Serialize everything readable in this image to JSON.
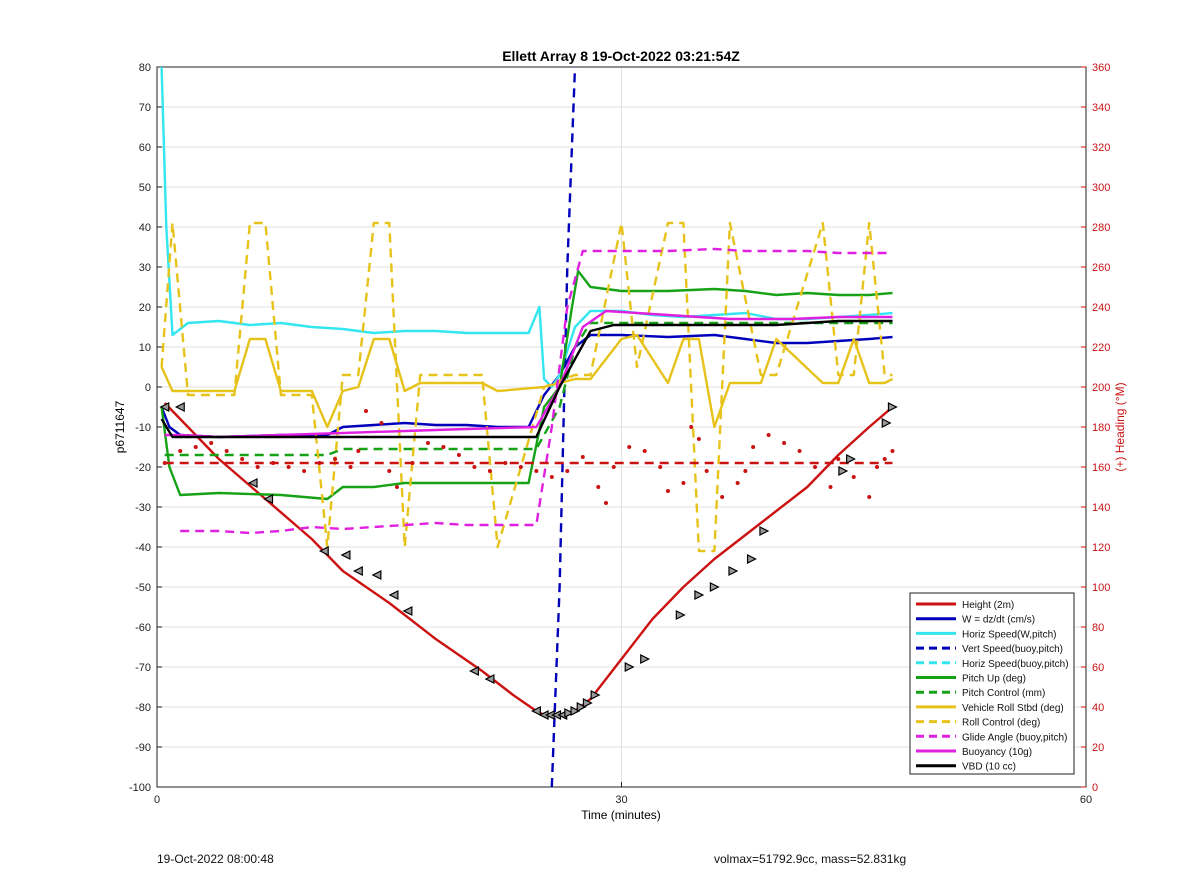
{
  "footer": {
    "left": "19-Oct-2022 08:00:48",
    "right": "volmax=51792.9cc, mass=52.831kg"
  },
  "chart_data": {
    "type": "line",
    "title": "Ellett Array 8 19-Oct-2022 03:21:54Z",
    "xlabel": "Time (minutes)",
    "ylabel": "p6711647",
    "ylabel_right": "(+) Heading (°M)",
    "xlim": [
      0,
      60
    ],
    "ylim": [
      -100,
      80
    ],
    "ylim_right": [
      0,
      360
    ],
    "x_ticks": [
      0,
      30,
      60
    ],
    "y_ticks": [
      -100,
      -90,
      -80,
      -70,
      -60,
      -50,
      -40,
      -30,
      -20,
      -10,
      0,
      10,
      20,
      30,
      40,
      50,
      60,
      70,
      80
    ],
    "y_ticks_right": [
      0,
      20,
      40,
      60,
      80,
      100,
      120,
      140,
      160,
      180,
      200,
      220,
      240,
      260,
      280,
      300,
      320,
      340,
      360
    ],
    "grid": true,
    "legend_position": "bottom-right",
    "colors": {
      "height": "#cc1111",
      "w": "#0000bb",
      "horiz": "#33e6f0",
      "pitch": "#16a216",
      "roll": "#e6c21a",
      "glide": "#e020e0",
      "vbd": "#000000",
      "heading": "#cc1111"
    },
    "series": [
      {
        "name": "Height (2m)",
        "color": "#cc1111",
        "style": "solid",
        "axis": "left",
        "x": [
          0.5,
          1.5,
          4,
          7,
          10,
          12,
          15,
          18,
          21,
          23,
          24.5,
          25,
          25.5,
          26,
          26.5,
          27,
          28,
          30,
          32,
          34,
          36,
          38,
          40,
          42,
          44,
          46,
          47.5
        ],
        "y": [
          -4,
          -8,
          -18,
          -28,
          -38,
          -46,
          -54,
          -63,
          -71,
          -77,
          -81,
          -82,
          -82,
          -82,
          -81.5,
          -81,
          -78,
          -68,
          -58,
          -50,
          -43,
          -37,
          -31,
          -25,
          -17,
          -10,
          -5
        ]
      },
      {
        "name": "W = dz/dt (cm/s)",
        "color": "#0000bb",
        "style": "solid",
        "axis": "left",
        "x": [
          0.3,
          0.8,
          1.5,
          4,
          8,
          11,
          12,
          14,
          16,
          18,
          20,
          22,
          24,
          25,
          26,
          27,
          28,
          29,
          30,
          33,
          36,
          38,
          40,
          42,
          44,
          46,
          47.5
        ],
        "y": [
          -5,
          -10,
          -12,
          -12.5,
          -12,
          -12,
          -10,
          -9.5,
          -9,
          -9.5,
          -9.5,
          -10,
          -10,
          -2,
          3,
          10,
          13,
          13,
          13,
          12.5,
          13,
          12,
          11,
          11,
          11.5,
          12,
          12.5
        ]
      },
      {
        "name": "Horiz Speed(W,pitch)",
        "color": "#33e6f0",
        "style": "solid",
        "axis": "left",
        "x": [
          0.3,
          0.6,
          1,
          2,
          4,
          6,
          8,
          10,
          12,
          14,
          16,
          18,
          20,
          22,
          24,
          24.7,
          25,
          25.5,
          26,
          27,
          28,
          30,
          32,
          34,
          36,
          38,
          40,
          42,
          44,
          46,
          47.5
        ],
        "y": [
          80,
          40,
          13,
          16,
          16.5,
          15.5,
          16,
          15,
          14.5,
          13.5,
          14,
          14,
          13.5,
          13.5,
          13.5,
          20,
          2,
          0,
          3,
          15,
          19,
          19,
          18,
          17.5,
          18,
          18.5,
          17,
          17,
          17.5,
          18,
          18.5
        ]
      },
      {
        "name": "Vert Speed(buoy,pitch)",
        "color": "#0000bb",
        "style": "dashed",
        "axis": "left",
        "x": [
          25.5,
          26,
          26.5,
          27
        ],
        "y": [
          -100,
          -50,
          30,
          80
        ]
      },
      {
        "name": "Horiz Speed(buoy,pitch)",
        "color": "#33e6f0",
        "style": "dashed",
        "axis": "left",
        "x": [],
        "y": []
      },
      {
        "name": "Pitch Up (deg)",
        "color": "#16a216",
        "style": "solid",
        "axis": "left",
        "x": [
          0.3,
          0.8,
          1.5,
          4,
          8,
          11,
          12,
          14,
          16,
          18,
          20,
          22,
          24,
          25,
          26,
          26.8,
          27.2,
          28,
          30,
          33,
          36,
          38,
          40,
          42,
          44,
          46,
          47.5
        ],
        "y": [
          -5,
          -20,
          -27,
          -26.5,
          -27,
          -28,
          -25,
          -25,
          -24,
          -24,
          -24,
          -24,
          -24,
          -5,
          0,
          20,
          29,
          25,
          24,
          24,
          24.5,
          24,
          23,
          23.5,
          23,
          23,
          23.5
        ]
      },
      {
        "name": "Pitch Control (mm)",
        "color": "#16a216",
        "style": "dashed",
        "axis": "left",
        "x": [
          0.5,
          11,
          12,
          24.5,
          26,
          27,
          28,
          47.5
        ],
        "y": [
          -17,
          -17,
          -15.5,
          -15.5,
          -5,
          10,
          16,
          16
        ]
      },
      {
        "name": "Vehicle Roll Stbd (deg)",
        "color": "#e6c21a",
        "style": "solid",
        "axis": "left",
        "x": [
          0.3,
          1,
          2,
          5,
          6,
          7,
          8,
          10,
          11,
          12,
          13,
          14,
          15,
          16,
          17,
          21,
          22,
          25,
          27,
          28,
          30,
          31,
          33,
          34,
          35,
          36,
          37,
          39,
          40,
          43,
          44,
          45,
          46,
          47,
          47.5
        ],
        "y": [
          5,
          -1,
          -1,
          -1,
          12,
          12,
          -1,
          -1,
          -10,
          -1,
          0,
          12,
          12,
          -1,
          1,
          1,
          -1,
          0,
          2,
          2,
          12,
          13,
          1,
          12,
          12,
          -10,
          1,
          1,
          12,
          1,
          1,
          12,
          1,
          1,
          2
        ]
      },
      {
        "name": "Roll Control (deg)",
        "color": "#e6c21a",
        "style": "dashed",
        "axis": "left",
        "x": [
          0.3,
          1,
          2,
          5,
          6,
          7,
          8,
          10,
          11,
          12,
          13,
          14,
          15,
          16,
          17,
          21,
          22,
          25,
          27,
          28,
          30,
          31,
          33,
          34,
          35,
          36,
          37,
          39,
          40,
          43,
          44,
          45,
          46,
          47,
          47.5
        ],
        "y": [
          5,
          41,
          -2,
          -2,
          41,
          41,
          -2,
          -2,
          -40,
          3,
          3,
          41,
          41,
          -40,
          3,
          3,
          -40,
          0,
          3,
          3,
          41,
          5,
          41,
          41,
          -41,
          -41,
          41,
          3,
          3,
          41,
          3,
          3,
          41,
          3,
          3
        ]
      },
      {
        "name": "Glide Angle (buoy,pitch)",
        "color": "#e020e0",
        "style": "dashed",
        "axis": "left",
        "x": [
          1.5,
          4,
          6,
          8,
          10,
          12,
          14,
          16,
          18,
          20,
          22,
          24.5,
          25.5,
          26.5,
          27.5,
          30,
          33,
          36,
          38,
          40,
          42,
          44,
          46,
          47.5
        ],
        "y": [
          -36,
          -36,
          -36.5,
          -36,
          -35,
          -35.5,
          -35,
          -34.5,
          -34,
          -34.5,
          -34.5,
          -34.5,
          -10,
          20,
          34,
          34,
          34,
          34.5,
          34,
          34,
          34,
          33.5,
          33.5,
          33.5
        ]
      },
      {
        "name": "Buoyancy (10g)",
        "color": "#e020e0",
        "style": "solid",
        "axis": "left",
        "x": [
          0.5,
          1.5,
          4,
          8,
          12,
          16,
          20,
          24.5,
          26,
          27.5,
          29,
          33,
          37,
          41,
          44,
          47.5
        ],
        "y": [
          -12,
          -12,
          -12.5,
          -12,
          -11.5,
          -11,
          -10.5,
          -10,
          0,
          15,
          19,
          18,
          17,
          17,
          17.5,
          17.5
        ]
      },
      {
        "name": "VBD (10 cc)",
        "color": "#000000",
        "style": "solid",
        "axis": "left",
        "x": [
          0.3,
          1,
          3,
          10,
          20,
          24.5,
          26,
          28,
          29.5,
          33,
          36,
          40,
          44,
          47.5
        ],
        "y": [
          -8,
          -12.5,
          -12.5,
          -12.5,
          -12.5,
          -12.5,
          0,
          14,
          15.5,
          15.5,
          15.5,
          15.5,
          16.5,
          16.5
        ]
      },
      {
        "name": "Heading",
        "color": "#cc1111",
        "style": "dots",
        "axis": "right",
        "x": [
          0.5,
          1.5,
          2.5,
          3.5,
          4.5,
          5.5,
          6.5,
          7.5,
          8.5,
          9.5,
          10.5,
          11.5,
          12.5,
          13,
          13.5,
          14.5,
          15,
          15.5,
          16.5,
          17.5,
          18.5,
          19.5,
          20.5,
          21.5,
          22.5,
          23.5,
          24.5,
          25.5,
          26.5,
          27.5,
          28.5,
          29,
          29.5,
          30.5,
          31.5,
          32.5,
          33,
          34,
          34.5,
          35,
          35.5,
          36.5,
          37.5,
          38,
          38.5,
          39.5,
          40.5,
          41.5,
          42.5,
          43.5,
          44,
          45,
          46,
          46.5,
          47,
          47.5
        ],
        "y": [
          162,
          168,
          170,
          172,
          168,
          164,
          160,
          162,
          160,
          158,
          162,
          164,
          160,
          168,
          188,
          182,
          158,
          150,
          162,
          172,
          170,
          166,
          160,
          158,
          162,
          160,
          158,
          155,
          158,
          165,
          150,
          142,
          160,
          170,
          168,
          160,
          148,
          152,
          180,
          174,
          158,
          145,
          152,
          158,
          170,
          176,
          172,
          168,
          160,
          150,
          164,
          155,
          145,
          160,
          164,
          168
        ]
      },
      {
        "name": "Heading target",
        "color": "#cc1111",
        "style": "dashed",
        "axis": "right",
        "x": [
          0.5,
          47.5
        ],
        "y": [
          162,
          162
        ]
      }
    ],
    "legend": [
      {
        "label": "Height (2m)",
        "color": "#cc1111",
        "style": "solid"
      },
      {
        "label": "W = dz/dt (cm/s)",
        "color": "#0000bb",
        "style": "solid"
      },
      {
        "label": "Horiz Speed(W,pitch)",
        "color": "#33e6f0",
        "style": "solid"
      },
      {
        "label": "Vert Speed(buoy,pitch)",
        "color": "#0000bb",
        "style": "dashed"
      },
      {
        "label": "Horiz Speed(buoy,pitch)",
        "color": "#33e6f0",
        "style": "dashed"
      },
      {
        "label": "Pitch Up (deg)",
        "color": "#16a216",
        "style": "solid"
      },
      {
        "label": "Pitch Control (mm)",
        "color": "#16a216",
        "style": "dashed"
      },
      {
        "label": "Vehicle Roll Stbd (deg)",
        "color": "#e6c21a",
        "style": "solid"
      },
      {
        "label": "Roll Control (deg)",
        "color": "#e6c21a",
        "style": "dashed"
      },
      {
        "label": "Glide Angle (buoy,pitch)",
        "color": "#e020e0",
        "style": "dashed"
      },
      {
        "label": "Buoyancy (10g)",
        "color": "#e020e0",
        "style": "solid"
      },
      {
        "label": "VBD (10 cc)",
        "color": "#000000",
        "style": "solid"
      }
    ],
    "height_markers": {
      "x": [
        0.5,
        1.5,
        6.2,
        7.2,
        10.8,
        12.2,
        13,
        14.2,
        15.3,
        16.2,
        20.5,
        21.5,
        24.5,
        25,
        25.4,
        25.8,
        26.2,
        26.6,
        27,
        27.4,
        27.8,
        28.3,
        30.5,
        31.5,
        33.8,
        35,
        36,
        37.2,
        38.4,
        39.2,
        44.3,
        44.8,
        47.1,
        47.5
      ],
      "y": [
        -5,
        -5,
        -24,
        -28,
        -41,
        -42,
        -46,
        -47,
        -52,
        -56,
        -71,
        -73,
        -81,
        -82,
        -82,
        -82,
        -82,
        -81.5,
        -81,
        -80,
        -79,
        -77,
        -70,
        -68,
        -57,
        -52,
        -50,
        -46,
        -43,
        -36,
        -21,
        -18,
        -9,
        -5
      ]
    }
  }
}
